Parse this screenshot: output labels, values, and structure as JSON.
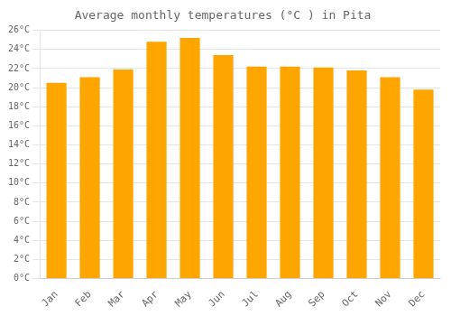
{
  "chart_data": {
    "type": "bar",
    "title": "Average monthly temperatures (°C ) in Pita",
    "categories": [
      "Jan",
      "Feb",
      "Mar",
      "Apr",
      "May",
      "Jun",
      "Jul",
      "Aug",
      "Sep",
      "Oct",
      "Nov",
      "Dec"
    ],
    "values": [
      20.5,
      21.1,
      21.9,
      24.8,
      25.2,
      23.4,
      22.2,
      22.2,
      22.1,
      21.8,
      21.1,
      19.8
    ],
    "color": "#FFA500",
    "ylim": [
      0,
      26
    ],
    "yticks": [
      {
        "value": 0,
        "label": "0°C"
      },
      {
        "value": 2,
        "label": "2°C"
      },
      {
        "value": 4,
        "label": "4°C"
      },
      {
        "value": 6,
        "label": "6°C"
      },
      {
        "value": 8,
        "label": "8°C"
      },
      {
        "value": 10,
        "label": "10°C"
      },
      {
        "value": 12,
        "label": "12°C"
      },
      {
        "value": 14,
        "label": "14°C"
      },
      {
        "value": 16,
        "label": "16°C"
      },
      {
        "value": 18,
        "label": "18°C"
      },
      {
        "value": 20,
        "label": "20°C"
      },
      {
        "value": 22,
        "label": "22°C"
      },
      {
        "value": 24,
        "label": "24°C"
      },
      {
        "value": 26,
        "label": "26°C"
      }
    ],
    "grid": true
  }
}
